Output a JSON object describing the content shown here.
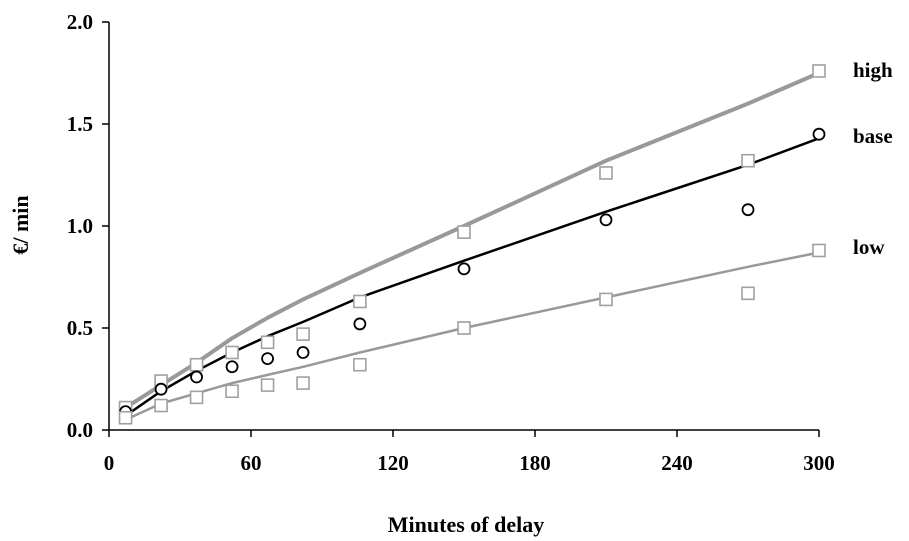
{
  "chart_data": {
    "type": "line",
    "title": "",
    "xlabel": "Minutes of delay",
    "ylabel": "€/ min",
    "xlim": [
      0,
      300
    ],
    "ylim": [
      0,
      2.0
    ],
    "x_ticks": [
      0,
      60,
      120,
      180,
      240,
      300
    ],
    "x_tick_labels": [
      "0",
      "60",
      "120",
      "180",
      "240",
      "300"
    ],
    "y_ticks": [
      0,
      0.5,
      1.0,
      1.5,
      2.0
    ],
    "y_tick_labels": [
      "0.0",
      "0.5",
      "1.0",
      "1.5",
      "2.0"
    ],
    "grid": false,
    "legend": "direct labels at right end of lines",
    "series": [
      {
        "name": "high",
        "color": "#999999",
        "line": {
          "x": [
            7,
            22,
            37,
            52,
            67,
            82,
            106,
            150,
            210,
            270,
            300
          ],
          "y": [
            0.11,
            0.22,
            0.33,
            0.45,
            0.55,
            0.64,
            0.77,
            1.0,
            1.32,
            1.6,
            1.75
          ]
        },
        "markers": {
          "shape": "square",
          "x": [
            7,
            22,
            37,
            52,
            67,
            82,
            106,
            150,
            210,
            270,
            300
          ],
          "y": [
            0.11,
            0.24,
            0.32,
            0.38,
            0.43,
            0.47,
            0.63,
            0.97,
            1.26,
            1.32,
            1.76
          ]
        }
      },
      {
        "name": "base",
        "color": "#000000",
        "line": {
          "x": [
            7,
            22,
            37,
            52,
            67,
            82,
            106,
            150,
            210,
            270,
            300
          ],
          "y": [
            0.07,
            0.19,
            0.29,
            0.38,
            0.46,
            0.53,
            0.65,
            0.83,
            1.07,
            1.3,
            1.43
          ]
        },
        "markers": {
          "shape": "circle",
          "x": [
            7,
            22,
            37,
            52,
            67,
            82,
            106,
            150,
            210,
            270,
            300
          ],
          "y": [
            0.09,
            0.2,
            0.26,
            0.31,
            0.35,
            0.38,
            0.52,
            0.79,
            1.03,
            1.08,
            1.45
          ]
        }
      },
      {
        "name": "low",
        "color": "#999999",
        "line": {
          "x": [
            7,
            22,
            37,
            52,
            67,
            82,
            106,
            150,
            210,
            270,
            300
          ],
          "y": [
            0.05,
            0.13,
            0.18,
            0.23,
            0.27,
            0.31,
            0.38,
            0.5,
            0.65,
            0.8,
            0.87
          ]
        },
        "markers": {
          "shape": "square",
          "x": [
            7,
            22,
            37,
            52,
            67,
            82,
            106,
            150,
            210,
            270,
            300
          ],
          "y": [
            0.06,
            0.12,
            0.16,
            0.19,
            0.22,
            0.23,
            0.32,
            0.5,
            0.64,
            0.67,
            0.88
          ]
        }
      }
    ]
  }
}
